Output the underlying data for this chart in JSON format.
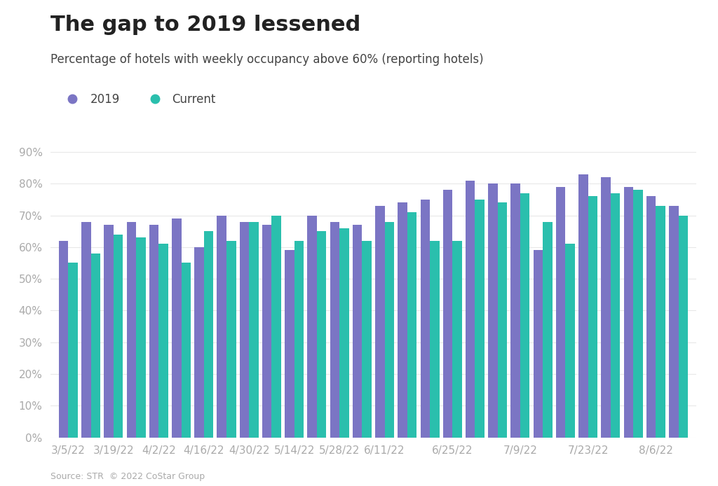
{
  "title": "The gap to 2019 lessened",
  "subtitle": "Percentage of hotels with weekly occupancy above 60% (reporting hotels)",
  "source": "Source: STR  © 2022 CoStar Group",
  "values_2019": [
    62,
    68,
    67,
    68,
    67,
    69,
    60,
    70,
    68,
    67,
    59,
    70,
    68,
    67,
    73,
    74,
    75,
    78,
    81,
    80,
    80,
    59,
    79,
    83,
    82,
    79,
    76,
    73
  ],
  "values_current": [
    55,
    58,
    64,
    63,
    61,
    55,
    65,
    62,
    68,
    70,
    62,
    65,
    66,
    62,
    68,
    71,
    62,
    62,
    75,
    74,
    77,
    68,
    61,
    76,
    77,
    78,
    73,
    70
  ],
  "color_2019": "#7b75c4",
  "color_current": "#2abfad",
  "yticks": [
    0,
    10,
    20,
    30,
    40,
    50,
    60,
    70,
    80,
    90
  ],
  "ytick_labels": [
    "0%",
    "10%",
    "20%",
    "30%",
    "40%",
    "50%",
    "60%",
    "70%",
    "80%",
    "90%"
  ],
  "xlabels": [
    "3/5/22",
    "3/19/22",
    "4/2/22",
    "4/16/22",
    "4/30/22",
    "5/14/22",
    "5/28/22",
    "6/11/22",
    "6/25/22",
    "7/9/22",
    "7/23/22",
    "8/6/22"
  ],
  "xtick_positions": [
    0,
    2,
    4,
    6,
    8,
    10,
    12,
    14,
    17,
    20,
    23,
    26
  ],
  "background_color": "#ffffff",
  "legend_2019": "2019",
  "legend_current": "Current",
  "bar_width": 0.42,
  "title_fontsize": 22,
  "subtitle_fontsize": 12,
  "axis_fontsize": 11
}
